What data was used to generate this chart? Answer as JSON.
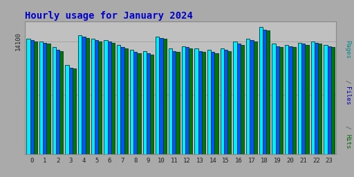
{
  "title": "Hourly usage for January 2024",
  "title_color": "#0000cc",
  "title_fontsize": 10,
  "hours": [
    0,
    1,
    2,
    3,
    4,
    5,
    6,
    7,
    8,
    9,
    10,
    11,
    12,
    13,
    14,
    15,
    16,
    17,
    18,
    19,
    20,
    21,
    22,
    23
  ],
  "pages": [
    97,
    95,
    90,
    75,
    100,
    97,
    96,
    92,
    88,
    87,
    99,
    89,
    91,
    89,
    88,
    89,
    95,
    97,
    107,
    93,
    92,
    94,
    95,
    92
  ],
  "files": [
    96,
    94,
    88,
    73,
    99,
    96,
    95,
    90,
    86,
    85,
    98,
    87,
    90,
    87,
    86,
    88,
    93,
    96,
    105,
    91,
    91,
    93,
    94,
    91
  ],
  "hits": [
    95,
    93,
    87,
    72,
    98,
    95,
    94,
    89,
    85,
    84,
    97,
    86,
    89,
    86,
    85,
    87,
    92,
    95,
    104,
    90,
    90,
    92,
    93,
    90
  ],
  "ymin": 0,
  "ymax": 112,
  "ytick_val": 95,
  "ytick_label": "14100",
  "bar_color_pages": "#00eeff",
  "bar_color_files": "#0055ff",
  "bar_color_hits": "#007700",
  "bar_edge_color": "#003333",
  "bg_color": "#aaaaaa",
  "plot_bg_color": "#c0c0c0",
  "right_label_pages": "Pages",
  "right_label_files": "Files",
  "right_label_hits": "Hits",
  "right_label_sep": " / ",
  "right_color_pages": "#008888",
  "right_color_files": "#0000aa",
  "right_color_hits": "#006600"
}
